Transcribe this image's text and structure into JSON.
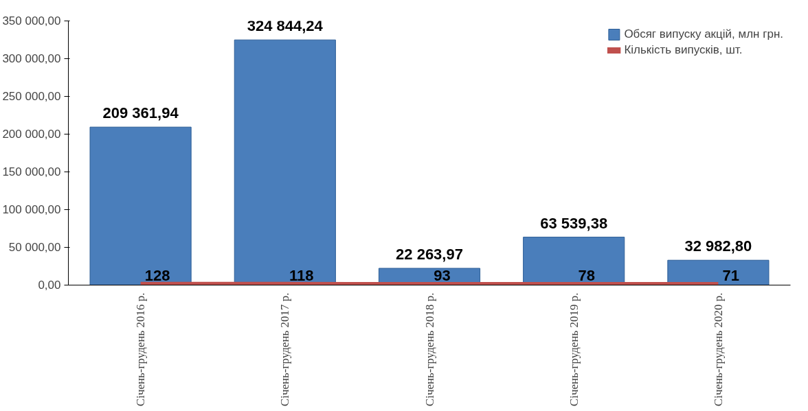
{
  "chart_data": {
    "type": "bar",
    "categories": [
      "Січень-грудень 2016 р.",
      "Січень-грудень 2017 р.",
      "Січень-грудень 2018 р.",
      "Січень-грудень 2019 р.",
      "Січень-грудень 2020 р."
    ],
    "series": [
      {
        "name": "Обсяг випуску акцій, млн грн.",
        "color": "#4a7ebb",
        "values": [
          209361.94,
          324844.24,
          22263.97,
          63539.38,
          32982.8
        ],
        "value_labels": [
          "209 361,94",
          "324 844,24",
          "22 263,97",
          "63 539,38",
          "32 982,80"
        ]
      },
      {
        "name": "Кількість випусків, шт.",
        "type": "line",
        "color": "#c0504d",
        "values": [
          128,
          118,
          93,
          78,
          71
        ],
        "value_labels": [
          "128",
          "118",
          "93",
          "78",
          "71"
        ]
      }
    ],
    "ylim": [
      0,
      350000
    ],
    "yticks": [
      {
        "value": 0,
        "label": "0,00"
      },
      {
        "value": 50000,
        "label": "50 000,00"
      },
      {
        "value": 100000,
        "label": "100 000,00"
      },
      {
        "value": 150000,
        "label": "150 000,00"
      },
      {
        "value": 200000,
        "label": "200 000,00"
      },
      {
        "value": 250000,
        "label": "250 000,00"
      },
      {
        "value": 300000,
        "label": "300 000,00"
      },
      {
        "value": 350000,
        "label": "350 000,00"
      }
    ],
    "grid": false,
    "legend": "top right"
  }
}
